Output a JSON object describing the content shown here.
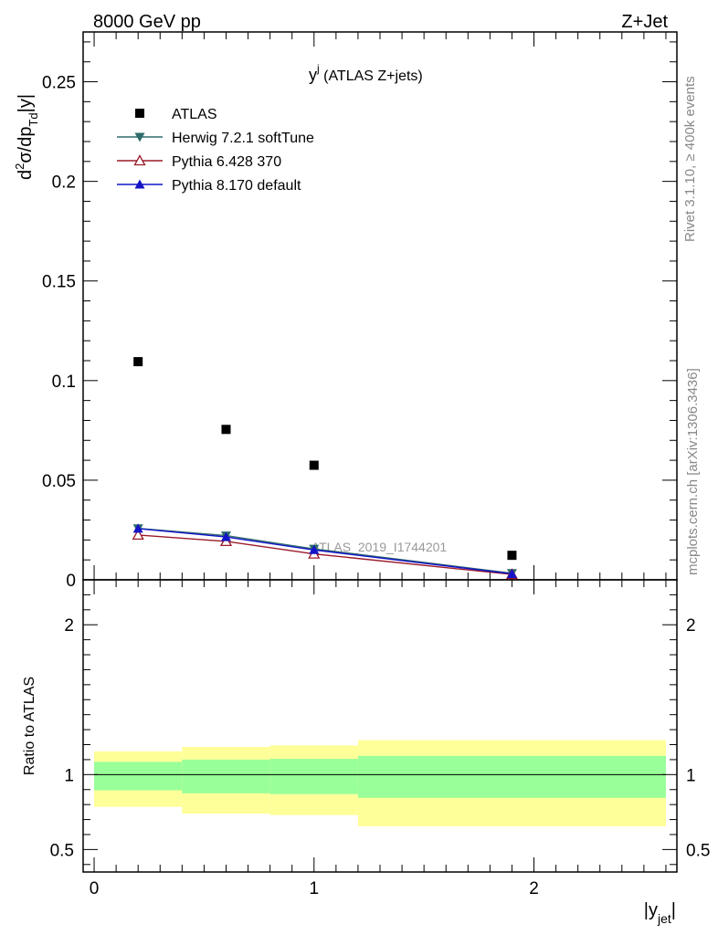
{
  "header": {
    "energy_label": "8000 GeV pp",
    "process_label": "Z+Jet"
  },
  "side_labels": {
    "rivet": "Rivet 3.1.10, ≥ 400k events",
    "mcplots": "mcplots.cern.ch [arXiv:1306.3436]"
  },
  "chart_data": {
    "type": "scatter",
    "title_main": "y",
    "title_sup": "j",
    "title_rest": " (ATLAS Z+jets)",
    "watermark": "ATLAS_2019_I1744201",
    "ylabel": {
      "pre": "d",
      "sup": "2",
      "mid": "σ/dp",
      "sub": "Td",
      "post": "|y|"
    },
    "xlabel": {
      "main": "|y",
      "sub": "jet",
      "post": "|"
    },
    "xlim": [
      -0.05,
      2.65
    ],
    "ylim": [
      0,
      0.275
    ],
    "xticks": [
      {
        "v": 0,
        "label": "0"
      },
      {
        "v": 1,
        "label": "1"
      },
      {
        "v": 2,
        "label": "2"
      }
    ],
    "yticks": [
      {
        "v": 0,
        "label": "0"
      },
      {
        "v": 0.05,
        "label": "0.05"
      },
      {
        "v": 0.1,
        "label": "0.1"
      },
      {
        "v": 0.15,
        "label": "0.15"
      },
      {
        "v": 0.2,
        "label": "0.2"
      },
      {
        "v": 0.25,
        "label": "0.25"
      }
    ],
    "x": [
      0.2,
      0.6,
      1.0,
      1.9
    ],
    "bins": [
      [
        0,
        0.4
      ],
      [
        0.4,
        0.8
      ],
      [
        0.8,
        1.2
      ],
      [
        1.2,
        2.6
      ]
    ],
    "series": [
      {
        "name": "ATLAS",
        "marker": "square",
        "color": "#000000",
        "line": false,
        "values": [
          0.1095,
          0.0755,
          0.0575,
          0.0123
        ]
      },
      {
        "name": "Herwig 7.2.1 softTune",
        "marker": "triangle-down",
        "color": "#2f6b6b",
        "line": true,
        "values": [
          0.0258,
          0.0222,
          0.0155,
          0.0033
        ]
      },
      {
        "name": "Pythia 6.428 370",
        "marker": "triangle-up-open",
        "color": "#9b1b2a",
        "line": true,
        "values": [
          0.0225,
          0.0193,
          0.013,
          0.0027
        ]
      },
      {
        "name": "Pythia 8.170 default",
        "marker": "triangle-up",
        "color": "#1414c8",
        "line": true,
        "values": [
          0.0257,
          0.0215,
          0.015,
          0.003
        ]
      }
    ],
    "ratio": {
      "ylabel": "Ratio to ATLAS",
      "ylim": [
        0.35,
        2.3
      ],
      "yticks": [
        {
          "v": 0.5,
          "label": "0.5"
        },
        {
          "v": 1,
          "label": "1"
        },
        {
          "v": 2,
          "label": "2"
        }
      ],
      "bands": [
        {
          "bin": [
            0,
            0.4
          ],
          "outer": [
            0.785,
            1.155
          ],
          "inner": [
            0.895,
            1.085
          ]
        },
        {
          "bin": [
            0.4,
            0.8
          ],
          "outer": [
            0.74,
            1.185
          ],
          "inner": [
            0.875,
            1.1
          ]
        },
        {
          "bin": [
            0.8,
            1.2
          ],
          "outer": [
            0.73,
            1.195
          ],
          "inner": [
            0.87,
            1.105
          ]
        },
        {
          "bin": [
            1.2,
            2.6
          ],
          "outer": [
            0.655,
            1.23
          ],
          "inner": [
            0.845,
            1.125
          ]
        }
      ],
      "outer_color": "#ffff99",
      "inner_color": "#99ff99"
    }
  }
}
